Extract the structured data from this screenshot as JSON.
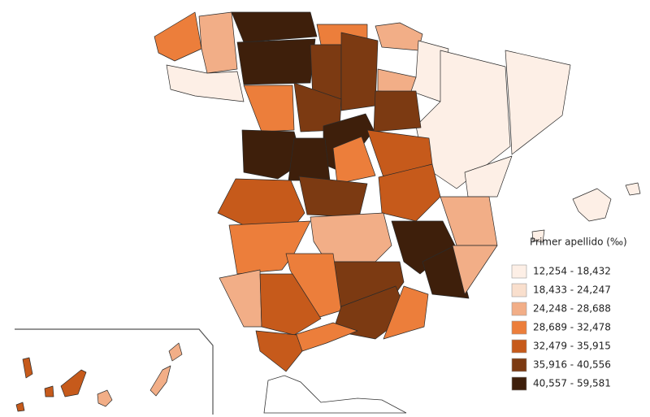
{
  "legend": {
    "title": "Primer apellido (‰)",
    "items": [
      {
        "label": "12,254 - 18,432",
        "color": "#fdefe6"
      },
      {
        "label": "18,433 - 24,247",
        "color": "#f9dfcd"
      },
      {
        "label": "24,248 - 28,688",
        "color": "#f2ae87"
      },
      {
        "label": "28,689 - 32,478",
        "color": "#ec7e3b"
      },
      {
        "label": "32,479 - 35,915",
        "color": "#c65a1b"
      },
      {
        "label": "35,916 - 40,556",
        "color": "#7c3a12"
      },
      {
        "label": "40,557 - 59,581",
        "color": "#3e1f0b"
      }
    ]
  }
}
